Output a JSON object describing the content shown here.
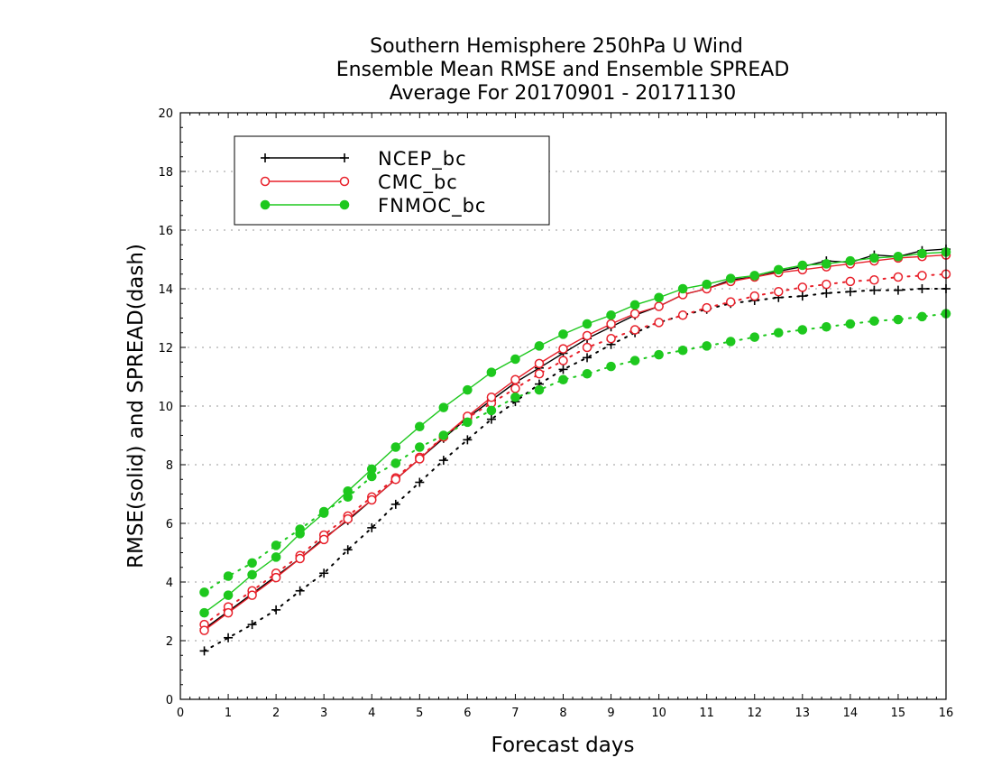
{
  "chart_data": {
    "type": "line",
    "title_lines": [
      "Southern Hemisphere 250hPa U Wind",
      "Ensemble Mean RMSE and Ensemble SPREAD",
      "Average For 20170901 - 20171130"
    ],
    "xlabel": "Forecast days",
    "ylabel": "RMSE(solid) and SPREAD(dash)",
    "xlim": [
      0,
      16
    ],
    "ylim": [
      0,
      20
    ],
    "xticks": [
      "0",
      "1",
      "2",
      "3",
      "4",
      "5",
      "6",
      "7",
      "8",
      "9",
      "10",
      "11",
      "12",
      "13",
      "14",
      "15",
      "16"
    ],
    "yticks": [
      "0",
      "2",
      "4",
      "6",
      "8",
      "10",
      "12",
      "14",
      "16",
      "18",
      "20"
    ],
    "grid": true,
    "legend_position": "top-left",
    "x": [
      0.5,
      1,
      1.5,
      2,
      2.5,
      3,
      3.5,
      4,
      4.5,
      5,
      5.5,
      6,
      6.5,
      7,
      7.5,
      8,
      8.5,
      9,
      9.5,
      10,
      10.5,
      11,
      11.5,
      12,
      12.5,
      13,
      13.5,
      14,
      14.5,
      15,
      15.5,
      16
    ],
    "series": [
      {
        "name": "NCEP_bc",
        "color": "#000000",
        "marker": "plus",
        "rmse": [
          2.4,
          3.0,
          3.6,
          4.2,
          4.8,
          5.5,
          6.1,
          6.8,
          7.5,
          8.2,
          8.9,
          9.6,
          10.2,
          10.8,
          11.3,
          11.8,
          12.3,
          12.7,
          13.1,
          13.4,
          13.8,
          14.0,
          14.3,
          14.4,
          14.6,
          14.75,
          14.95,
          14.9,
          15.15,
          15.1,
          15.3,
          15.35
        ],
        "spread": [
          1.65,
          2.1,
          2.55,
          3.05,
          3.7,
          4.3,
          5.1,
          5.85,
          6.65,
          7.4,
          8.15,
          8.85,
          9.55,
          10.15,
          10.75,
          11.25,
          11.65,
          12.1,
          12.5,
          12.85,
          13.1,
          13.3,
          13.5,
          13.6,
          13.7,
          13.75,
          13.85,
          13.9,
          13.95,
          13.95,
          14.0,
          14.0
        ]
      },
      {
        "name": "CMC_bc",
        "color": "#e8202a",
        "marker": "open-circle",
        "rmse": [
          2.35,
          2.95,
          3.55,
          4.15,
          4.8,
          5.45,
          6.15,
          6.8,
          7.5,
          8.2,
          8.95,
          9.65,
          10.3,
          10.9,
          11.45,
          11.95,
          12.4,
          12.8,
          13.15,
          13.4,
          13.8,
          14.0,
          14.25,
          14.4,
          14.55,
          14.65,
          14.75,
          14.85,
          14.95,
          15.05,
          15.1,
          15.15
        ],
        "spread": [
          2.55,
          3.15,
          3.7,
          4.3,
          4.9,
          5.6,
          6.25,
          6.9,
          7.55,
          8.25,
          8.95,
          9.6,
          10.1,
          10.6,
          11.1,
          11.55,
          12.0,
          12.3,
          12.6,
          12.85,
          13.1,
          13.35,
          13.55,
          13.75,
          13.9,
          14.05,
          14.15,
          14.25,
          14.3,
          14.4,
          14.45,
          14.5
        ]
      },
      {
        "name": "FNMOC_bc",
        "color": "#1ec81e",
        "marker": "filled-circle",
        "rmse": [
          2.95,
          3.55,
          4.25,
          4.85,
          5.65,
          6.35,
          7.1,
          7.85,
          8.6,
          9.3,
          9.95,
          10.55,
          11.15,
          11.6,
          12.05,
          12.45,
          12.8,
          13.1,
          13.45,
          13.7,
          14.0,
          14.15,
          14.35,
          14.45,
          14.65,
          14.8,
          14.85,
          14.95,
          15.05,
          15.1,
          15.2,
          15.25
        ],
        "spread": [
          3.65,
          4.2,
          4.65,
          5.25,
          5.8,
          6.4,
          6.9,
          7.6,
          8.05,
          8.6,
          9.0,
          9.45,
          9.85,
          10.3,
          10.55,
          10.9,
          11.1,
          11.35,
          11.55,
          11.75,
          11.9,
          12.05,
          12.2,
          12.35,
          12.5,
          12.6,
          12.7,
          12.8,
          12.9,
          12.95,
          13.05,
          13.15
        ]
      }
    ]
  }
}
